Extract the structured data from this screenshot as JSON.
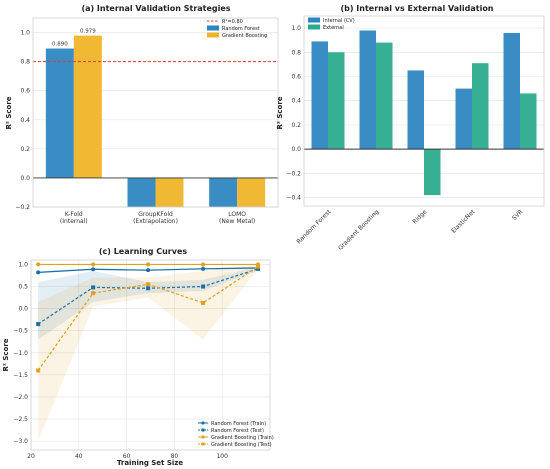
{
  "colors": {
    "random_forest": "#2e86c1",
    "gradient_boosting": "#f0b429",
    "internal": "#2e86c1",
    "external": "#2bab8c",
    "threshold": "#e53935",
    "rf_line": "#1a6fa8",
    "gb_line": "#e0a020"
  },
  "chart_data": [
    {
      "type": "bar",
      "title": "(a) Internal Validation Strategies",
      "xlabel": "",
      "ylabel": "R² Score",
      "categories": [
        "K-Fold\n(Internal)",
        "GroupKFold\n(Extrapolation)",
        "LOMO\n(New Metal)"
      ],
      "series": [
        {
          "name": "Random Forest",
          "values": [
            0.89,
            -0.2,
            -0.2
          ]
        },
        {
          "name": "Gradient Boosting",
          "values": [
            0.979,
            -0.2,
            -0.2
          ]
        }
      ],
      "data_labels": [
        "0.890",
        "0.979"
      ],
      "reference_line": {
        "label": "R²=0.80",
        "value": 0.8
      },
      "ylim": [
        -0.2,
        1.1
      ],
      "yticks": [
        "−0.2",
        "0.0",
        "0.2",
        "0.4",
        "0.6",
        "0.8",
        "1.0"
      ],
      "legend_position": "top-right",
      "grid": true
    },
    {
      "type": "bar",
      "title": "(b) Internal vs External Validation",
      "xlabel": "",
      "ylabel": "R² Score",
      "categories": [
        "Random Forest",
        "Gradient Boosting",
        "Ridge",
        "ElasticNet",
        "SVR"
      ],
      "series": [
        {
          "name": "Internal (CV)",
          "values": [
            0.89,
            0.98,
            0.65,
            0.5,
            0.96
          ]
        },
        {
          "name": "External",
          "values": [
            0.8,
            0.88,
            -0.38,
            0.71,
            0.46
          ]
        }
      ],
      "ylim": [
        -0.47,
        1.1
      ],
      "yticks": [
        "−0.4",
        "−0.2",
        "0.0",
        "0.2",
        "0.4",
        "0.6",
        "0.8",
        "1.0"
      ],
      "legend_position": "top-left",
      "grid": true
    },
    {
      "type": "line",
      "title": "(c) Learning Curves",
      "xlabel": "Training Set Size",
      "ylabel": "R² Score",
      "x": [
        23,
        46,
        69,
        92,
        115
      ],
      "series": [
        {
          "name": "Random Forest (Train)",
          "values": [
            0.82,
            0.89,
            0.87,
            0.9,
            0.92
          ],
          "band": [
            [
              0.8,
              0.84
            ],
            [
              0.87,
              0.91
            ],
            [
              0.85,
              0.89
            ],
            [
              0.88,
              0.92
            ],
            [
              0.9,
              0.94
            ]
          ]
        },
        {
          "name": "Random Forest (Test)",
          "values": [
            -0.35,
            0.48,
            0.46,
            0.5,
            0.9
          ],
          "band": [
            [
              -0.7,
              0.6
            ],
            [
              0.15,
              0.85
            ],
            [
              0.35,
              0.6
            ],
            [
              0.4,
              0.65
            ],
            [
              0.86,
              0.95
            ]
          ]
        },
        {
          "name": "Gradient Boosting (Train)",
          "values": [
            1.0,
            1.0,
            1.0,
            1.0,
            1.0
          ],
          "band": [
            [
              0.99,
              1.0
            ],
            [
              0.99,
              1.0
            ],
            [
              0.99,
              1.0
            ],
            [
              0.99,
              1.0
            ],
            [
              0.99,
              1.0
            ]
          ]
        },
        {
          "name": "Gradient Boosting (Test)",
          "values": [
            -1.4,
            0.35,
            0.55,
            0.13,
            0.95
          ],
          "band": [
            [
              -3.0,
              0.15
            ],
            [
              0.05,
              0.7
            ],
            [
              0.25,
              0.7
            ],
            [
              -0.7,
              0.85
            ],
            [
              0.9,
              1.0
            ]
          ]
        }
      ],
      "xlim": [
        20,
        120
      ],
      "ylim": [
        -3.2,
        1.1
      ],
      "xticks": [
        "20",
        "40",
        "60",
        "80",
        "100"
      ],
      "yticks": [
        "−3.0",
        "−2.5",
        "−2.0",
        "−1.5",
        "−1.0",
        "−0.5",
        "0.0",
        "0.5",
        "1.0"
      ],
      "legend_position": "bottom-right",
      "grid": true
    }
  ]
}
